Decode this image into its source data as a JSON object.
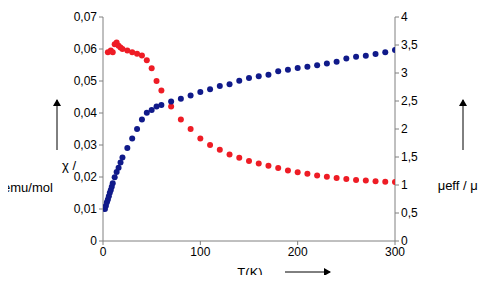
{
  "chart_data": {
    "type": "scatter",
    "x_label": "T(K)",
    "y_label": "χ / emu/mol",
    "y2_label": "μeff / μB",
    "xlim": [
      0,
      300
    ],
    "xticks": [
      0,
      100,
      200,
      300
    ],
    "ylim": [
      0,
      0.07
    ],
    "yticks": [
      0,
      {
        "value": 0.01,
        "label": "0,01"
      },
      {
        "value": 0.02,
        "label": "0,02"
      },
      {
        "value": 0.03,
        "label": "0,03"
      },
      {
        "value": 0.04,
        "label": "0,04"
      },
      {
        "value": 0.05,
        "label": "0,05"
      },
      {
        "value": 0.06,
        "label": "0,06"
      },
      {
        "value": 0.07,
        "label": "0,07"
      }
    ],
    "y2lim": [
      0,
      4
    ],
    "y2ticks": [
      0,
      {
        "value": 0.5,
        "label": "0,5"
      },
      1,
      {
        "value": 1.5,
        "label": "1,5"
      },
      2,
      {
        "value": 2.5,
        "label": "2,5"
      },
      3,
      {
        "value": 3.5,
        "label": "3,5"
      },
      4
    ],
    "grid": false,
    "series": [
      {
        "color": "#ee1c25",
        "marker": "circle",
        "axis": "y",
        "x": [
          5,
          8,
          10,
          12,
          14,
          16,
          18,
          20,
          25,
          30,
          35,
          40,
          45,
          50,
          55,
          60,
          70,
          80,
          90,
          100,
          110,
          120,
          130,
          140,
          150,
          160,
          170,
          180,
          190,
          200,
          210,
          220,
          230,
          240,
          250,
          260,
          270,
          280,
          290,
          300
        ],
        "values": [
          0.059,
          0.0595,
          0.059,
          0.0615,
          0.062,
          0.061,
          0.0605,
          0.06,
          0.0595,
          0.059,
          0.0585,
          0.058,
          0.0565,
          0.054,
          0.05,
          0.047,
          0.042,
          0.038,
          0.035,
          0.032,
          0.03,
          0.0285,
          0.027,
          0.026,
          0.025,
          0.0242,
          0.0235,
          0.0228,
          0.022,
          0.0215,
          0.021,
          0.0205,
          0.0201,
          0.0197,
          0.0194,
          0.0191,
          0.0189,
          0.0187,
          0.0185,
          0.0184
        ]
      },
      {
        "color": "#101a8a",
        "marker": "circle",
        "axis": "y2",
        "x": [
          2,
          3,
          4,
          5,
          6,
          7,
          8,
          9,
          10,
          12,
          14,
          16,
          18,
          20,
          25,
          30,
          35,
          40,
          45,
          50,
          55,
          60,
          70,
          80,
          90,
          100,
          110,
          120,
          130,
          140,
          150,
          160,
          170,
          180,
          190,
          200,
          210,
          220,
          230,
          240,
          250,
          260,
          270,
          280,
          290,
          300
        ],
        "values": [
          0.57,
          0.63,
          0.69,
          0.74,
          0.8,
          0.86,
          0.91,
          0.97,
          1.03,
          1.14,
          1.23,
          1.31,
          1.4,
          1.49,
          1.66,
          1.83,
          2.0,
          2.17,
          2.29,
          2.34,
          2.4,
          2.43,
          2.49,
          2.54,
          2.6,
          2.66,
          2.71,
          2.77,
          2.8,
          2.86,
          2.91,
          2.94,
          2.97,
          3.03,
          3.06,
          3.09,
          3.11,
          3.14,
          3.17,
          3.2,
          3.26,
          3.29,
          3.31,
          3.34,
          3.37,
          3.41
        ]
      }
    ]
  }
}
